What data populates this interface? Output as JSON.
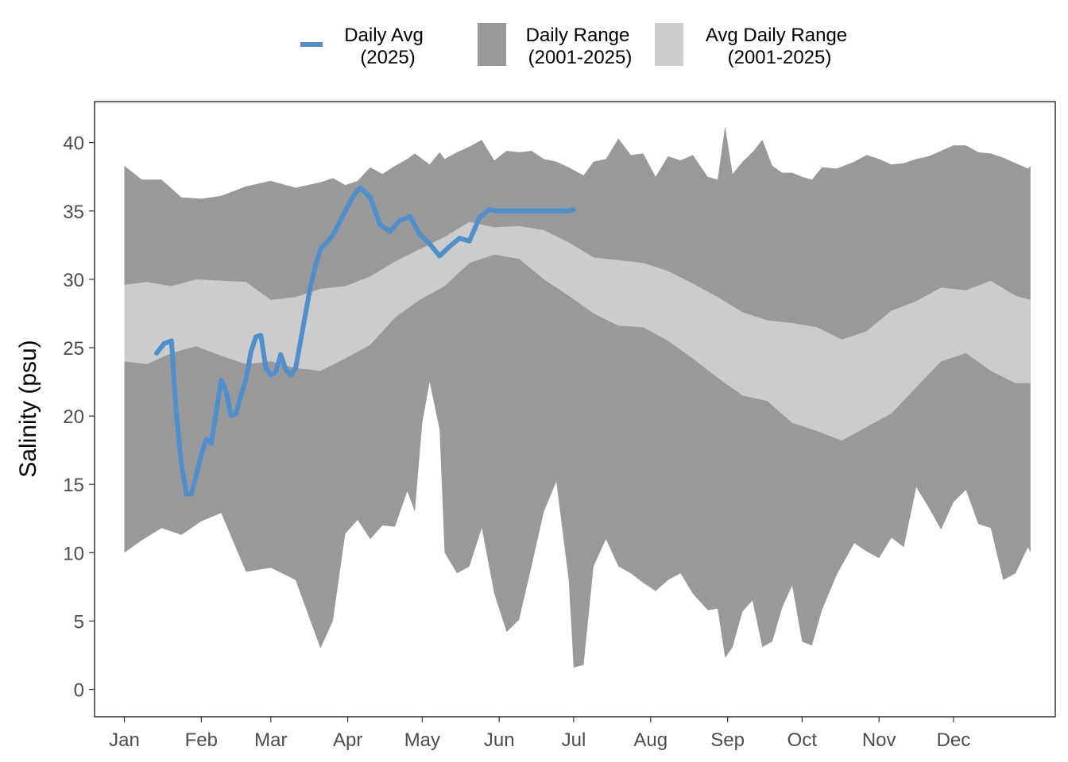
{
  "chart_data": {
    "type": "area",
    "title": "",
    "ylabel": "Salinity (psu)",
    "xlabel": "",
    "ylim": [
      -2,
      43
    ],
    "xlim_day": [
      -11,
      376
    ],
    "y_ticks": [
      0,
      5,
      10,
      15,
      20,
      25,
      30,
      35,
      40
    ],
    "x_tick_labels": [
      "Jan",
      "Feb",
      "Mar",
      "Apr",
      "May",
      "Jun",
      "Jul",
      "Aug",
      "Sep",
      "Oct",
      "Nov",
      "Dec"
    ],
    "x_tick_days": [
      1,
      32,
      60,
      91,
      121,
      152,
      182,
      213,
      244,
      274,
      305,
      335
    ],
    "grid": false,
    "legend_position": "top",
    "legend": [
      {
        "label": "Daily Avg",
        "sublabel": "(2025)",
        "key": "line",
        "color": "#4f8fcc"
      },
      {
        "label": "Daily Range",
        "sublabel": "(2001-2025)",
        "key": "box",
        "color": "#999999"
      },
      {
        "label": "Avg Daily Range",
        "sublabel": "(2001-2025)",
        "key": "box",
        "color": "#cccccc"
      }
    ],
    "series": [
      {
        "name": "Daily Range (2001-2025)",
        "kind": "band",
        "color": "#999999",
        "x": [
          1,
          8,
          16,
          24,
          32,
          40,
          50,
          60,
          70,
          80,
          85,
          90,
          95,
          100,
          105,
          110,
          115,
          118,
          121,
          124,
          128,
          130,
          135,
          140,
          145,
          150,
          155,
          160,
          165,
          170,
          175,
          180,
          182,
          186,
          190,
          195,
          200,
          205,
          210,
          215,
          220,
          225,
          230,
          236,
          240,
          243,
          246,
          250,
          254,
          258,
          262,
          266,
          270,
          274,
          278,
          282,
          288,
          295,
          300,
          305,
          310,
          315,
          320,
          325,
          330,
          335,
          340,
          345,
          350,
          355,
          360,
          365,
          366
        ],
        "high": [
          38.3,
          37.3,
          37.3,
          36.0,
          35.9,
          36.1,
          36.8,
          37.2,
          36.7,
          37.1,
          37.4,
          36.9,
          37.2,
          38.2,
          37.7,
          38.3,
          38.8,
          39.2,
          38.8,
          38.4,
          39.3,
          38.8,
          39.3,
          39.7,
          40.2,
          38.7,
          39.4,
          39.3,
          39.4,
          38.8,
          38.6,
          38.2,
          38.0,
          37.6,
          38.6,
          38.8,
          40.3,
          39.1,
          39.2,
          37.5,
          39.0,
          38.7,
          39.1,
          37.5,
          37.3,
          41.2,
          37.7,
          38.6,
          39.3,
          40.2,
          38.3,
          37.8,
          37.8,
          37.5,
          37.3,
          38.2,
          38.1,
          38.6,
          39.1,
          38.8,
          38.4,
          38.5,
          38.8,
          39.0,
          39.4,
          39.8,
          39.8,
          39.3,
          39.2,
          38.9,
          38.5,
          38.1,
          38.3
        ],
        "low": [
          10.0,
          10.9,
          11.8,
          11.3,
          12.3,
          12.9,
          8.6,
          8.9,
          8.0,
          3.0,
          5.0,
          11.4,
          12.4,
          11.0,
          12.0,
          11.9,
          14.5,
          13.0,
          19.5,
          22.5,
          19.0,
          10.0,
          8.5,
          9.0,
          11.8,
          7.0,
          4.2,
          5.1,
          9.0,
          13.0,
          15.2,
          8.0,
          1.6,
          1.8,
          9.0,
          11.0,
          9.0,
          8.5,
          7.8,
          7.2,
          8.0,
          8.5,
          7.0,
          5.8,
          5.9,
          2.3,
          3.1,
          5.7,
          6.5,
          3.1,
          3.5,
          6.0,
          7.6,
          3.5,
          3.2,
          5.8,
          8.4,
          10.7,
          10.1,
          9.6,
          11.1,
          10.4,
          14.8,
          13.3,
          11.7,
          13.7,
          14.6,
          12.1,
          11.8,
          8.0,
          8.5,
          10.4,
          10.0
        ]
      },
      {
        "name": "Avg Daily Range (2001-2025)",
        "kind": "band",
        "color": "#cccccc",
        "x": [
          1,
          10,
          20,
          30,
          40,
          50,
          60,
          70,
          80,
          90,
          100,
          110,
          120,
          130,
          140,
          150,
          160,
          170,
          180,
          190,
          200,
          210,
          220,
          230,
          240,
          250,
          260,
          270,
          280,
          290,
          300,
          310,
          320,
          330,
          340,
          350,
          360,
          366
        ],
        "high": [
          29.6,
          29.8,
          29.5,
          30.0,
          29.9,
          29.8,
          28.5,
          28.7,
          29.3,
          29.5,
          30.2,
          31.3,
          32.2,
          33.1,
          34.2,
          33.8,
          33.9,
          33.6,
          32.7,
          31.6,
          31.4,
          31.2,
          30.6,
          29.7,
          28.7,
          27.6,
          27.0,
          26.8,
          26.5,
          25.6,
          26.2,
          27.7,
          28.4,
          29.4,
          29.2,
          29.9,
          28.8,
          28.5
        ],
        "low": [
          24.0,
          23.8,
          24.6,
          25.1,
          24.4,
          23.8,
          24.0,
          23.5,
          23.3,
          24.2,
          25.2,
          27.2,
          28.5,
          29.5,
          31.2,
          31.8,
          31.5,
          30.0,
          28.8,
          27.5,
          26.6,
          26.5,
          25.5,
          24.2,
          22.8,
          21.5,
          21.1,
          19.5,
          18.9,
          18.2,
          19.2,
          20.2,
          22.1,
          24.0,
          24.6,
          23.3,
          22.4,
          22.4
        ]
      },
      {
        "name": "Daily Avg (2025)",
        "kind": "line",
        "color": "#4f8fcc",
        "x": [
          14,
          17,
          20,
          22,
          24,
          26,
          28,
          30,
          32,
          34,
          36,
          38,
          40,
          42,
          44,
          46,
          48,
          50,
          52,
          54,
          56,
          58,
          60,
          62,
          64,
          66,
          68,
          70,
          72,
          74,
          76,
          78,
          80,
          82,
          84,
          86,
          88,
          92,
          94,
          96,
          100,
          104,
          108,
          112,
          116,
          120,
          124,
          128,
          132,
          136,
          140,
          144,
          148,
          152,
          154,
          156,
          158,
          160,
          162,
          164,
          166,
          168,
          170,
          172,
          174,
          176,
          178,
          180,
          182
        ],
        "y": [
          24.6,
          25.3,
          25.5,
          20.0,
          16.5,
          14.3,
          14.3,
          15.7,
          17.2,
          18.3,
          18.0,
          20.3,
          22.6,
          21.8,
          20.0,
          20.2,
          21.5,
          22.7,
          24.7,
          25.8,
          25.9,
          23.5,
          23.0,
          23.2,
          24.5,
          23.4,
          23.0,
          23.5,
          25.5,
          27.5,
          29.5,
          31.0,
          32.2,
          32.6,
          33.0,
          33.6,
          34.3,
          35.7,
          36.3,
          36.7,
          36.0,
          34.0,
          33.5,
          34.3,
          34.6,
          33.3,
          32.6,
          31.7,
          32.4,
          33.0,
          32.8,
          34.5,
          35.1,
          35.0,
          35.0,
          35.0,
          35.0,
          35.0,
          35.0,
          35.0,
          35.0,
          35.0,
          35.0,
          35.0,
          35.0,
          35.0,
          35.0,
          35.0,
          35.1
        ]
      }
    ]
  }
}
